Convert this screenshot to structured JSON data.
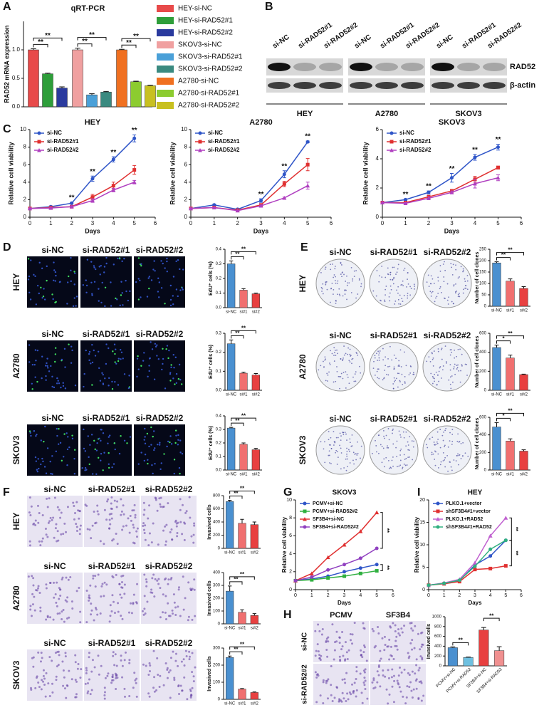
{
  "panel_letters": [
    "A",
    "B",
    "C",
    "D",
    "E",
    "F",
    "G",
    "H",
    "I"
  ],
  "blot": {
    "lanes": [
      "si-NC",
      "si-RAD52#1",
      "si-RAD52#2"
    ],
    "cell_lines": [
      "HEY",
      "A2780",
      "SKOV3"
    ],
    "proteins": [
      "RAD52",
      "β-actin"
    ]
  },
  "image_grids": [
    {
      "columns": [
        "si-NC",
        "si-RAD52#1",
        "si-RAD52#2"
      ],
      "rows": [
        "HEY",
        "A2780",
        "SKOV3"
      ]
    },
    {
      "columns": [
        "si-NC",
        "si-RAD52#1",
        "si-RAD52#2"
      ],
      "rows": [
        "HEY",
        "A2780",
        "SKOV3"
      ]
    },
    {
      "columns": [
        "si-NC",
        "si-RAD52#1",
        "si-RAD52#2"
      ],
      "rows": [
        "HEY",
        "A2780",
        "SKOV3"
      ]
    },
    {
      "columns": [
        "PCMV",
        "SF3B4"
      ],
      "rows": [
        "si-NC",
        "si-RAD52#2"
      ]
    }
  ],
  "chart_data": [
    {
      "type": "bar",
      "title": "qRT-PCR",
      "ylabel": "RAD52 mRNA expression",
      "ylim": [
        0,
        1.5
      ],
      "yticks": [
        {
          "value": 0,
          "label": "0.0"
        },
        {
          "value": 0.5,
          "label": "0.5"
        },
        {
          "value": 1,
          "label": "1.0"
        }
      ],
      "series": [
        {
          "name": "HEY-si-NC",
          "color": "#e84a4a",
          "values": [
            1.0
          ],
          "errors": [
            0.02
          ]
        },
        {
          "name": "HEY-si-RAD52#1",
          "color": "#2e9e3a",
          "values": [
            0.58
          ],
          "errors": [
            0.01
          ]
        },
        {
          "name": "HEY-si-RAD52#2",
          "color": "#2a3a9e",
          "values": [
            0.33
          ],
          "errors": [
            0.02
          ]
        },
        {
          "name": "SKOV3-si-NC",
          "color": "#f0a0a0",
          "values": [
            1.0
          ],
          "errors": [
            0.03
          ]
        },
        {
          "name": "SKOV3-si-RAD52#1",
          "color": "#4aa0d8",
          "values": [
            0.21
          ],
          "errors": [
            0.02
          ]
        },
        {
          "name": "SKOV3-si-RAD52#2",
          "color": "#3a8a80",
          "values": [
            0.26
          ],
          "errors": [
            0.01
          ]
        },
        {
          "name": "A2780-si-NC",
          "color": "#f07020",
          "values": [
            1.0
          ],
          "errors": [
            0.01
          ]
        },
        {
          "name": "A2780-si-RAD52#1",
          "color": "#8ccc30",
          "values": [
            0.44
          ],
          "errors": [
            0.01
          ]
        },
        {
          "name": "A2780-si-RAD52#2",
          "color": "#c8c020",
          "values": [
            0.37
          ],
          "errors": [
            0.01
          ]
        }
      ],
      "significance": [
        "**",
        "**",
        "**",
        "**",
        "**",
        "**"
      ]
    },
    {
      "type": "line",
      "title": "HEY",
      "xlabel": "Days",
      "ylabel": "Relative cell viability",
      "x": [
        0,
        1,
        2,
        3,
        4,
        5
      ],
      "xlim": [
        0,
        6
      ],
      "xticks": [
        0,
        1,
        2,
        3,
        4,
        5,
        6
      ],
      "ylim": [
        0,
        10
      ],
      "yticks": [
        0,
        2,
        4,
        6,
        8,
        10
      ],
      "legend": "upper left",
      "series": [
        {
          "name": "si-NC",
          "color": "#2f55c8",
          "marker": "circle",
          "values": [
            1,
            1.2,
            1.6,
            4.4,
            6.6,
            9.0
          ],
          "errors": [
            0.05,
            0.1,
            0.1,
            0.3,
            0.3,
            0.4
          ]
        },
        {
          "name": "si-RAD52#1",
          "color": "#e03030",
          "marker": "square",
          "values": [
            1,
            1.1,
            1.2,
            2.3,
            3.6,
            5.4
          ],
          "errors": [
            0.05,
            0.1,
            0.1,
            0.3,
            0.4,
            0.5
          ]
        },
        {
          "name": "si-RAD52#2",
          "color": "#b040c0",
          "marker": "triangle",
          "values": [
            1,
            1.05,
            1.2,
            1.9,
            3.1,
            4.0
          ],
          "errors": [
            0.05,
            0.1,
            0.1,
            0.2,
            0.2,
            0.2
          ]
        }
      ],
      "significance": [
        "**",
        "**",
        "**",
        "**"
      ]
    },
    {
      "type": "line",
      "title": "A2780",
      "xlabel": "Days",
      "ylabel": "Relative cell viability",
      "x": [
        0,
        1,
        2,
        3,
        4,
        5
      ],
      "xlim": [
        0,
        6
      ],
      "xticks": [
        0,
        1,
        2,
        3,
        4,
        5,
        6
      ],
      "ylim": [
        0,
        10
      ],
      "yticks": [
        0,
        2,
        4,
        6,
        8,
        10
      ],
      "legend": "upper left",
      "series": [
        {
          "name": "si-NC",
          "color": "#2f55c8",
          "marker": "circle",
          "values": [
            1,
            1.4,
            0.9,
            1.9,
            4.9,
            8.6
          ],
          "errors": [
            0.05,
            0.1,
            0.05,
            0.2,
            0.4,
            0.1
          ]
        },
        {
          "name": "si-RAD52#1",
          "color": "#e03030",
          "marker": "square",
          "values": [
            1,
            1.1,
            0.8,
            1.4,
            3.8,
            6.0
          ],
          "errors": [
            0.05,
            0.05,
            0.05,
            0.1,
            0.3,
            0.7
          ]
        },
        {
          "name": "si-RAD52#2",
          "color": "#b040c0",
          "marker": "triangle",
          "values": [
            1,
            1.1,
            0.75,
            1.3,
            2.2,
            3.6
          ],
          "errors": [
            0.05,
            0.05,
            0.05,
            0.1,
            0.1,
            0.4
          ]
        }
      ],
      "significance": [
        "**",
        "**",
        "**"
      ]
    },
    {
      "type": "line",
      "title": "SKOV3",
      "xlabel": "Days",
      "ylabel": "Relative cell viability",
      "x": [
        0,
        1,
        2,
        3,
        4,
        5
      ],
      "xlim": [
        0,
        6
      ],
      "xticks": [
        0,
        1,
        2,
        3,
        4,
        5,
        6
      ],
      "ylim": [
        0,
        6
      ],
      "yticks": [
        0,
        2,
        4,
        6
      ],
      "legend": "upper left",
      "series": [
        {
          "name": "si-NC",
          "color": "#2f55c8",
          "marker": "circle",
          "values": [
            1,
            1.2,
            1.7,
            2.7,
            4.1,
            4.8
          ],
          "errors": [
            0.05,
            0.05,
            0.1,
            0.3,
            0.2,
            0.2
          ]
        },
        {
          "name": "si-RAD52#1",
          "color": "#e03030",
          "marker": "square",
          "values": [
            1,
            1.0,
            1.4,
            1.8,
            2.6,
            3.4
          ],
          "errors": [
            0.05,
            0.05,
            0.1,
            0.1,
            0.2,
            0.1
          ]
        },
        {
          "name": "si-RAD52#2",
          "color": "#b040c0",
          "marker": "triangle",
          "values": [
            1,
            0.95,
            1.3,
            1.7,
            2.3,
            2.7
          ],
          "errors": [
            0.05,
            0.05,
            0.1,
            0.1,
            0.3,
            0.2
          ]
        }
      ],
      "significance": [
        "**",
        "**",
        "**",
        "**",
        "**"
      ]
    },
    {
      "type": "bar",
      "ylabel": "EdU⁺ cells (%)",
      "categories": [
        "si-NC",
        "si#1",
        "si#2"
      ],
      "colors": [
        "#4a90d0",
        "#f07070",
        "#e84040"
      ],
      "values": [
        0.3,
        0.12,
        0.095
      ],
      "errors": [
        0.02,
        0.01,
        0.005
      ],
      "ylim": [
        0,
        0.4
      ],
      "yticks": [
        {
          "value": 0,
          "label": "0.0"
        },
        {
          "value": 0.1,
          "label": "0.1"
        },
        {
          "value": 0.2,
          "label": "0.2"
        },
        {
          "value": 0.3,
          "label": "0.3"
        },
        {
          "value": 0.4,
          "label": "0.4"
        }
      ],
      "significance": [
        "**",
        "**"
      ]
    },
    {
      "type": "bar",
      "ylabel": "EdU⁺ cells (%)",
      "categories": [
        "si-NC",
        "si#1",
        "si#2"
      ],
      "colors": [
        "#4a90d0",
        "#f07070",
        "#e84040"
      ],
      "values": [
        0.245,
        0.09,
        0.08
      ],
      "errors": [
        0.02,
        0.005,
        0.008
      ],
      "ylim": [
        0,
        0.3
      ],
      "yticks": [
        {
          "value": 0,
          "label": "0.0"
        },
        {
          "value": 0.1,
          "label": "0.1"
        },
        {
          "value": 0.2,
          "label": "0.2"
        },
        {
          "value": 0.3,
          "label": "0.3"
        }
      ],
      "significance": [
        "**",
        "**"
      ]
    },
    {
      "type": "bar",
      "ylabel": "EdU⁺ cells (%)",
      "categories": [
        "si-NC",
        "si#1",
        "si#2"
      ],
      "colors": [
        "#4a90d0",
        "#f07070",
        "#e84040"
      ],
      "values": [
        0.31,
        0.19,
        0.15
      ],
      "errors": [
        0.005,
        0.01,
        0.01
      ],
      "ylim": [
        0,
        0.4
      ],
      "yticks": [
        {
          "value": 0,
          "label": "0.0"
        },
        {
          "value": 0.1,
          "label": "0.1"
        },
        {
          "value": 0.2,
          "label": "0.2"
        },
        {
          "value": 0.3,
          "label": "0.3"
        },
        {
          "value": 0.4,
          "label": "0.4"
        }
      ],
      "significance": [
        "**",
        "**"
      ]
    },
    {
      "type": "bar",
      "ylabel": "Number of cell clones",
      "categories": [
        "si-NC",
        "si#1",
        "si#2"
      ],
      "colors": [
        "#4a90d0",
        "#f07070",
        "#e84040"
      ],
      "values": [
        190,
        110,
        78
      ],
      "errors": [
        5,
        10,
        8
      ],
      "ylim": [
        0,
        250
      ],
      "yticks": [
        0,
        50,
        100,
        150,
        200,
        250
      ],
      "significance": [
        "**",
        "**"
      ]
    },
    {
      "type": "bar",
      "ylabel": "Number of cell clones",
      "categories": [
        "si-NC",
        "si#1",
        "si#2"
      ],
      "colors": [
        "#4a90d0",
        "#f07070",
        "#e84040"
      ],
      "values": [
        450,
        340,
        165
      ],
      "errors": [
        25,
        30,
        5
      ],
      "ylim": [
        0,
        600
      ],
      "yticks": [
        0,
        200,
        400,
        600
      ],
      "significance": [
        "*",
        "**"
      ]
    },
    {
      "type": "bar",
      "ylabel": "Number of cell clones",
      "categories": [
        "si-NC",
        "si#1",
        "si#2"
      ],
      "colors": [
        "#4a90d0",
        "#f07070",
        "#e84040"
      ],
      "values": [
        490,
        330,
        215
      ],
      "errors": [
        50,
        25,
        15
      ],
      "ylim": [
        0,
        600
      ],
      "yticks": [
        0,
        200,
        400,
        600
      ],
      "significance": [
        "*",
        "**"
      ]
    },
    {
      "type": "bar",
      "ylabel": "Invasived cells",
      "categories": [
        "si-NC",
        "si#1",
        "si#2"
      ],
      "colors": [
        "#4a90d0",
        "#f07070",
        "#e84040"
      ],
      "values": [
        710,
        380,
        360
      ],
      "errors": [
        20,
        60,
        40
      ],
      "ylim": [
        0,
        800
      ],
      "yticks": [
        0,
        200,
        400,
        600,
        800
      ],
      "significance": [
        "**",
        "**"
      ]
    },
    {
      "type": "bar",
      "ylabel": "Invasived cells",
      "categories": [
        "si-NC",
        "si#1",
        "si#2"
      ],
      "colors": [
        "#4a90d0",
        "#f07070",
        "#e84040"
      ],
      "values": [
        255,
        90,
        65
      ],
      "errors": [
        40,
        20,
        15
      ],
      "ylim": [
        0,
        400
      ],
      "yticks": [
        0,
        100,
        200,
        300,
        400
      ],
      "significance": [
        "**",
        "**"
      ]
    },
    {
      "type": "bar",
      "ylabel": "Invasived cells",
      "categories": [
        "si-NC",
        "si#1",
        "si#2"
      ],
      "colors": [
        "#4a90d0",
        "#f07070",
        "#e84040"
      ],
      "values": [
        245,
        60,
        40
      ],
      "errors": [
        8,
        3,
        3
      ],
      "ylim": [
        0,
        300
      ],
      "yticks": [
        0,
        100,
        200,
        300
      ],
      "significance": [
        "**",
        "**"
      ]
    },
    {
      "type": "line",
      "title": "SKOV3",
      "xlabel": "Days",
      "ylabel": "Relative cell viability",
      "x": [
        0,
        1,
        2,
        3,
        4,
        5
      ],
      "xlim": [
        0,
        6
      ],
      "xticks": [
        0,
        1,
        2,
        3,
        4,
        5,
        6
      ],
      "ylim": [
        0,
        10
      ],
      "yticks": [
        0,
        2,
        4,
        6,
        8,
        10
      ],
      "legend": "upper left",
      "series": [
        {
          "name": "PCMV+si-NC",
          "color": "#2f55c8",
          "marker": "circle",
          "values": [
            1,
            1.2,
            1.5,
            2.0,
            2.4,
            2.8
          ]
        },
        {
          "name": "PCMV+si-RAD52#2",
          "color": "#30b040",
          "marker": "square",
          "values": [
            1,
            1.1,
            1.3,
            1.5,
            1.8,
            2.1
          ]
        },
        {
          "name": "SF3B4+si-NC",
          "color": "#e03030",
          "marker": "triangle",
          "values": [
            1,
            1.8,
            3.6,
            5.0,
            6.5,
            8.6
          ]
        },
        {
          "name": "SF3B4+si-RAD52#2",
          "color": "#9040c0",
          "marker": "circle",
          "values": [
            1,
            1.4,
            2.2,
            2.8,
            3.5,
            4.6
          ]
        }
      ],
      "significance": [
        "**",
        "**"
      ]
    },
    {
      "type": "bar",
      "ylabel": "Invasived cells",
      "categories": [
        "PCMV+si-NC",
        "PCMV+si-RAD52",
        "SF3B4+si-NC",
        "SF3B4+si-RAD52"
      ],
      "colors": [
        "#4a90d0",
        "#6ec0e0",
        "#e84040",
        "#f09090"
      ],
      "values": [
        370,
        170,
        730,
        310
      ],
      "errors": [
        15,
        10,
        50,
        80
      ],
      "ylim": [
        0,
        1000
      ],
      "yticks": [
        0,
        200,
        400,
        600,
        800,
        1000
      ],
      "significance": [
        "**",
        "**"
      ]
    },
    {
      "type": "line",
      "title": "HEY",
      "xlabel": "Days",
      "ylabel": "Relative cell viability",
      "x": [
        0,
        1,
        2,
        3,
        4,
        5
      ],
      "xlim": [
        0,
        6
      ],
      "xticks": [
        0,
        1,
        2,
        3,
        4,
        5,
        6
      ],
      "ylim": [
        0,
        20
      ],
      "yticks": [
        0,
        5,
        10,
        15,
        20
      ],
      "legend": "upper left",
      "series": [
        {
          "name": "PLKO.1+vector",
          "color": "#2f55c8",
          "marker": "circle",
          "values": [
            1,
            1.4,
            2,
            5.5,
            7.5,
            11
          ]
        },
        {
          "name": "shSF3B4#1+vector",
          "color": "#e03030",
          "marker": "square",
          "values": [
            1,
            1.3,
            1.8,
            4.5,
            4.7,
            5.3
          ]
        },
        {
          "name": "PLKO.1+RAD52",
          "color": "#c060d0",
          "marker": "triangle",
          "values": [
            1,
            1.5,
            2.3,
            6,
            12,
            16
          ]
        },
        {
          "name": "shSF3B4#1+RAD52",
          "color": "#30b080",
          "marker": "circle",
          "values": [
            1,
            1.4,
            2.1,
            5.2,
            9,
            11
          ]
        }
      ],
      "significance": [
        "**",
        "**"
      ]
    }
  ]
}
